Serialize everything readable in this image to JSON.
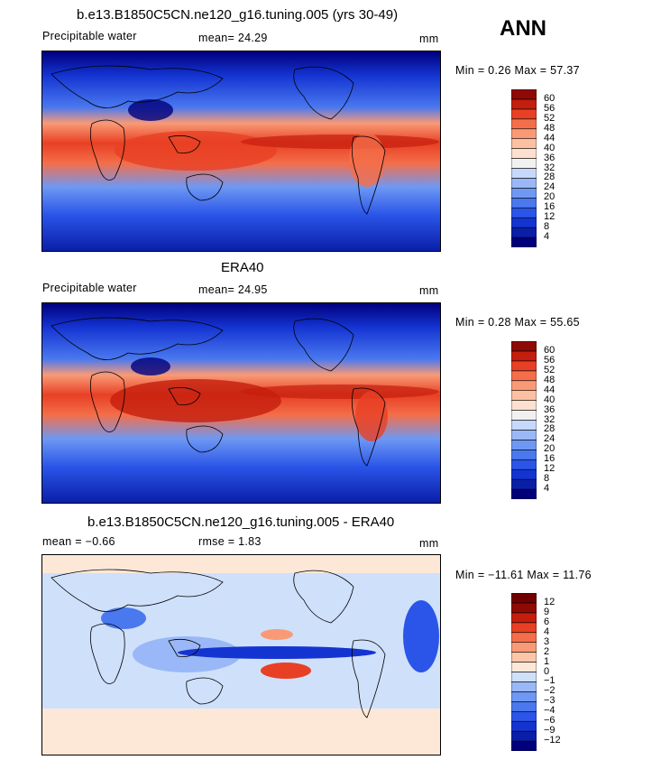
{
  "season": "ANN",
  "panels": [
    {
      "title": "b.e13.B1850C5CN.ne120_g16.tuning.005 (yrs 30-49)",
      "variable": "Precipitable water",
      "mean_text": "mean=   24.29",
      "units": "mm",
      "minmax_text": "Min =    0.26  Max =   57.37",
      "colorbar_labels": [
        "60",
        "56",
        "52",
        "48",
        "44",
        "40",
        "36",
        "32",
        "28",
        "24",
        "20",
        "16",
        "12",
        "8",
        "4"
      ]
    },
    {
      "title": "ERA40",
      "variable": "Precipitable water",
      "mean_text": "mean=   24.95",
      "units": "mm",
      "minmax_text": "Min =    0.28  Max =   55.65",
      "colorbar_labels": [
        "60",
        "56",
        "52",
        "48",
        "44",
        "40",
        "36",
        "32",
        "28",
        "24",
        "20",
        "16",
        "12",
        "8",
        "4"
      ]
    },
    {
      "title": "b.e13.B1850C5CN.ne120_g16.tuning.005 - ERA40",
      "mean_text": "mean =   −0.66",
      "rmse_text": "rmse =    1.83",
      "units": "mm",
      "minmax_text": "Min = −11.61  Max =   11.76",
      "colorbar_labels": [
        "12",
        "9",
        "6",
        "4",
        "3",
        "2",
        "1",
        "0",
        "−1",
        "−2",
        "−3",
        "−4",
        "−6",
        "−9",
        "−12"
      ]
    }
  ],
  "colors": {
    "abs_scale": [
      "#00007c",
      "#0a1fa8",
      "#1434d2",
      "#2a55e8",
      "#4a78ef",
      "#6e98f3",
      "#9ab8f7",
      "#c6d8fb",
      "#f1f1f1",
      "#fde0cf",
      "#fcc0a3",
      "#f99a76",
      "#f46e4a",
      "#e84024",
      "#c41e0e",
      "#8e0a04"
    ],
    "diff_scale": [
      "#00007c",
      "#0a1fa8",
      "#1434d2",
      "#2a55e8",
      "#4a78ef",
      "#6e98f3",
      "#9ab8f7",
      "#cfe0fb",
      "#fde8d8",
      "#fcc6a8",
      "#f99a76",
      "#f46e4a",
      "#e84024",
      "#c41e0e",
      "#8e0a04",
      "#700000"
    ]
  }
}
